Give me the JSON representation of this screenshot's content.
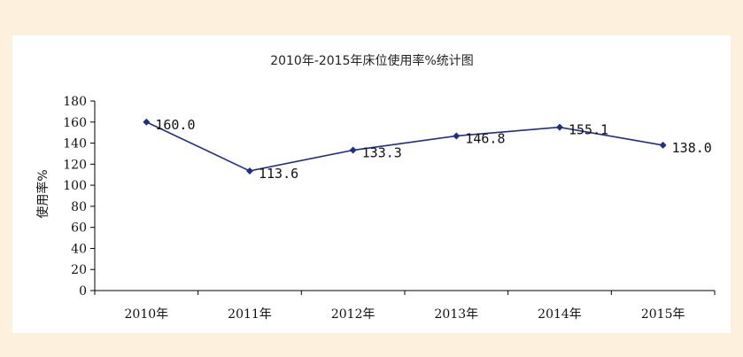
{
  "chart_data": {
    "type": "line",
    "title": "2010年-2015年床位使用率%统计图",
    "xlabel": "",
    "ylabel": "使用率%",
    "categories": [
      "2010年",
      "2011年",
      "2012年",
      "2013年",
      "2014年",
      "2015年"
    ],
    "values": [
      160.0,
      113.6,
      133.3,
      146.8,
      155.1,
      138.0
    ],
    "data_labels": [
      "160.0",
      "113.6",
      "133.3",
      "146.8",
      "155.1",
      "138.0"
    ],
    "ylim": [
      0,
      180
    ],
    "yticks": [
      "0",
      "20",
      "40",
      "60",
      "80",
      "100",
      "120",
      "140",
      "160",
      "180"
    ],
    "grid": false,
    "legend": "none",
    "colors": {
      "line": "#1f2f86",
      "marker": "#1f2f86",
      "axis": "#000000"
    }
  }
}
